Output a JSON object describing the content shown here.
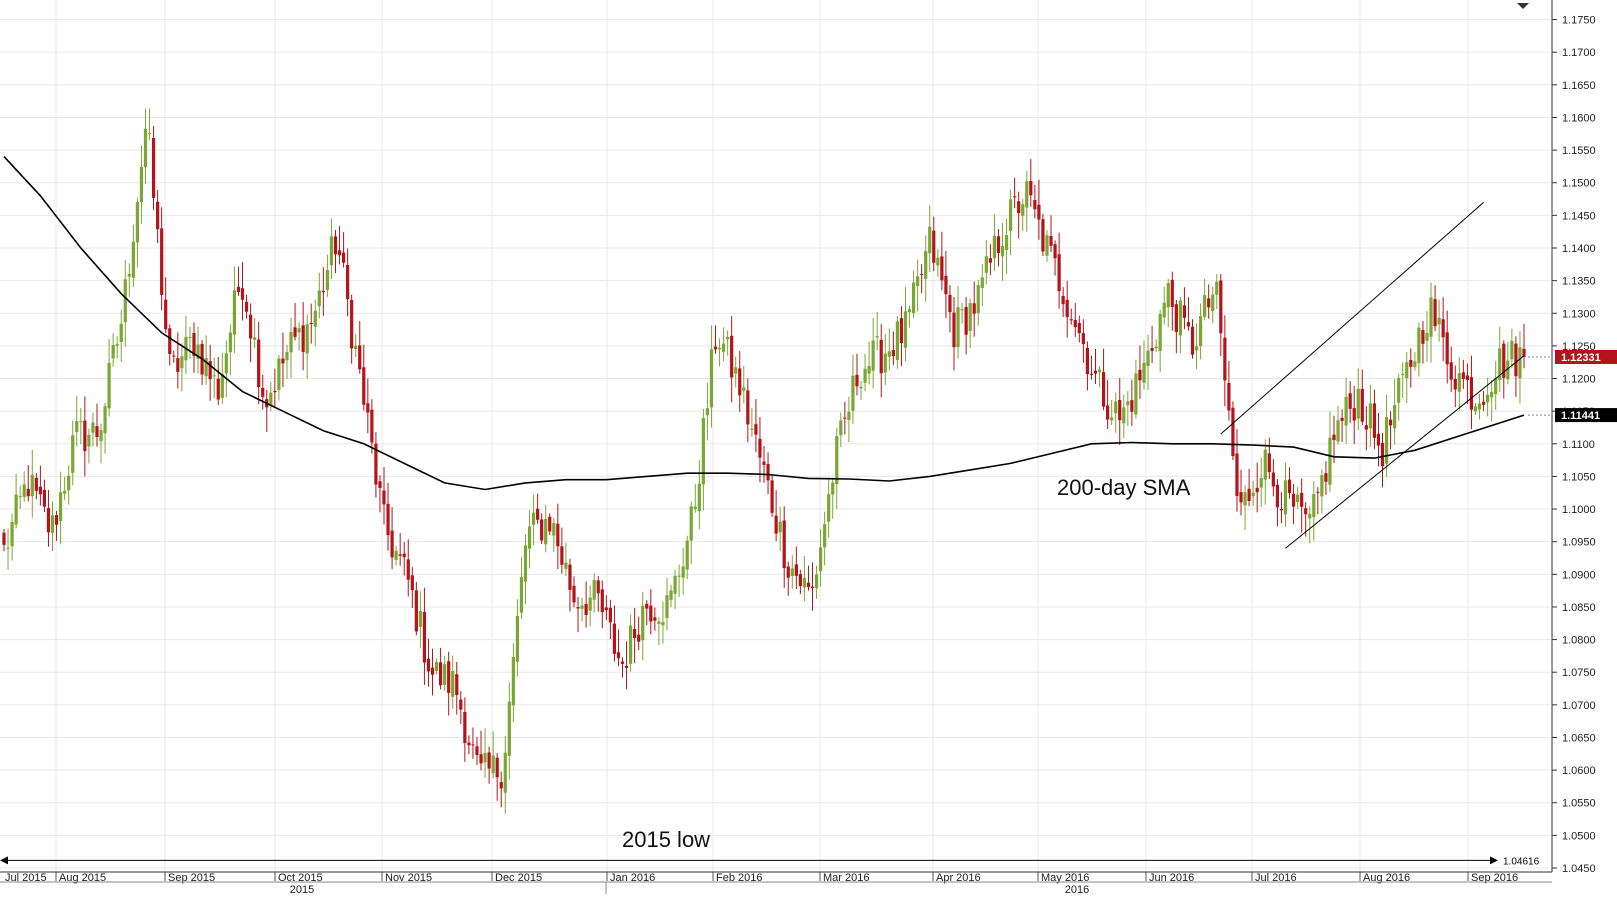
{
  "chart_data": {
    "type": "candlestick",
    "title": "",
    "xlabel": "",
    "ylabel": "",
    "grid": true,
    "ylim": [
      1.045,
      1.178
    ],
    "y_ticks": [
      "1.1750",
      "1.1700",
      "1.1650",
      "1.1600",
      "1.1550",
      "1.1500",
      "1.1450",
      "1.1400",
      "1.1350",
      "1.1300",
      "1.1250",
      "1.1200",
      "1.1150",
      "1.1100",
      "1.1050",
      "1.1000",
      "1.0950",
      "1.0900",
      "1.0850",
      "1.0800",
      "1.0750",
      "1.0700",
      "1.0650",
      "1.0600",
      "1.0550",
      "1.0500",
      "1.0450"
    ],
    "x_months": [
      "Jul 2015",
      "Aug 2015",
      "Sep 2015",
      "Oct 2015",
      "Nov 2015",
      "Dec 2015",
      "Jan 2016",
      "Feb 2016",
      "Mar 2016",
      "Apr 2016",
      "May 2016",
      "Jun 2016",
      "Jul 2016",
      "Aug 2016",
      "Sep 2016"
    ],
    "x_years": [
      "2015",
      "2016"
    ],
    "price_badges": {
      "last_price": "1.12331",
      "sma_value": "1.11441",
      "low_label": "1.04616"
    },
    "annotations": {
      "sma_label": "200-day SMA",
      "low_label": "2015 low"
    },
    "colors": {
      "up": "#7aa733",
      "down": "#b3141b",
      "sma": "#000000",
      "grid": "#e8e8e8",
      "price_badge": "#b3141b",
      "sma_badge": "#000000"
    },
    "waypoints": [
      [
        1.1,
        1.087
      ],
      [
        1.11,
        1.0985
      ],
      [
        1.103,
        1.09
      ],
      [
        1.118,
        1.104
      ],
      [
        1.11,
        1.114
      ],
      [
        1.135,
        1.125
      ],
      [
        1.168,
        1.151
      ],
      [
        1.125,
        1.116
      ],
      [
        1.132,
        1.12
      ],
      [
        1.122,
        1.114
      ],
      [
        1.14,
        1.132
      ],
      [
        1.12,
        1.113
      ],
      [
        1.128,
        1.121
      ],
      [
        1.132,
        1.126
      ],
      [
        1.146,
        1.137
      ],
      [
        1.13,
        1.11
      ],
      [
        1.1,
        1.095
      ],
      [
        1.09,
        1.088
      ],
      [
        1.076,
        1.074
      ],
      [
        1.08,
        1.066
      ],
      [
        1.06,
        1.058
      ],
      [
        1.057,
        1.064
      ],
      [
        1.097,
        1.095
      ],
      [
        1.105,
        1.092
      ],
      [
        1.085,
        1.088
      ],
      [
        1.092,
        1.08
      ],
      [
        1.072,
        1.08
      ],
      [
        1.086,
        1.085
      ],
      [
        1.082,
        1.088
      ],
      [
        1.092,
        1.105
      ],
      [
        1.125,
        1.13
      ],
      [
        1.125,
        1.112
      ],
      [
        1.109,
        1.102
      ],
      [
        1.094,
        1.09
      ],
      [
        1.086,
        1.087
      ],
      [
        1.1,
        1.115
      ],
      [
        1.118,
        1.125
      ],
      [
        1.131,
        1.117
      ],
      [
        1.12,
        1.135
      ],
      [
        1.14,
        1.142
      ],
      [
        1.13,
        1.125
      ],
      [
        1.129,
        1.135
      ],
      [
        1.135,
        1.15
      ],
      [
        1.152,
        1.145
      ],
      [
        1.14,
        1.138
      ],
      [
        1.135,
        1.125
      ],
      [
        1.121,
        1.118
      ],
      [
        1.114,
        1.113
      ],
      [
        1.118,
        1.125
      ],
      [
        1.138,
        1.128
      ],
      [
        1.13,
        1.12
      ],
      [
        1.13,
        1.138
      ],
      [
        1.1,
        1.098
      ],
      [
        1.11,
        1.105
      ],
      [
        1.102,
        1.1
      ],
      [
        1.096,
        1.098
      ],
      [
        1.105,
        1.118
      ],
      [
        1.12,
        1.115
      ],
      [
        1.11,
        1.108
      ],
      [
        1.118,
        1.122
      ],
      [
        1.13,
        1.132
      ],
      [
        1.125,
        1.118
      ],
      [
        1.114,
        1.12
      ],
      [
        1.123,
        1.122
      ],
      [
        1.124,
        1.1233
      ]
    ],
    "sma_points": [
      [
        0,
        1.154
      ],
      [
        9,
        1.148
      ],
      [
        19,
        1.14
      ],
      [
        29,
        1.133
      ],
      [
        39,
        1.127
      ],
      [
        49,
        1.123
      ],
      [
        59,
        1.118
      ],
      [
        69,
        1.115
      ],
      [
        79,
        1.112
      ],
      [
        89,
        1.11
      ],
      [
        99,
        1.107
      ],
      [
        109,
        1.104
      ],
      [
        119,
        1.103
      ],
      [
        129,
        1.104
      ],
      [
        139,
        1.1045
      ],
      [
        149,
        1.1045
      ],
      [
        159,
        1.105
      ],
      [
        169,
        1.1055
      ],
      [
        179,
        1.1055
      ],
      [
        189,
        1.1053
      ],
      [
        199,
        1.1047
      ],
      [
        209,
        1.1046
      ],
      [
        219,
        1.1043
      ],
      [
        229,
        1.105
      ],
      [
        239,
        1.106
      ],
      [
        249,
        1.107
      ],
      [
        259,
        1.1085
      ],
      [
        269,
        1.11
      ],
      [
        279,
        1.1102
      ],
      [
        289,
        1.11
      ],
      [
        299,
        1.11
      ],
      [
        309,
        1.1098
      ],
      [
        319,
        1.1095
      ],
      [
        329,
        1.108
      ],
      [
        339,
        1.1078
      ],
      [
        349,
        1.109
      ],
      [
        359,
        1.111
      ],
      [
        369,
        1.113
      ],
      [
        376,
        1.1144
      ]
    ],
    "trend_channel": {
      "upper": [
        [
          301,
          1.1115
        ],
        [
          366,
          1.147
        ]
      ],
      "lower": [
        [
          317,
          1.094
        ],
        [
          376,
          1.1235
        ]
      ]
    },
    "low_line_value": 1.04616
  }
}
